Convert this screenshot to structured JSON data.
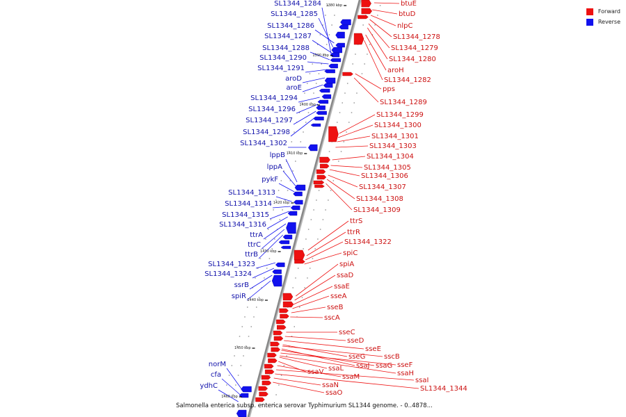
{
  "title": "Salmonella enterica subsp. enterica serovar Typhimurium SL1344 genome. - 0..4878...",
  "legend": [
    {
      "label": "Forward",
      "color": "#ee1111"
    },
    {
      "label": "Reverse",
      "color": "#1111ee"
    }
  ],
  "colors": {
    "forward": "#ee1111",
    "reverse": "#1111ee",
    "backbone": "#888888"
  },
  "ticks": [
    "1380 kbp",
    "1390 kbp",
    "1400 kbp",
    "1410 kbp",
    "1420 kbp",
    "1430 kbp",
    "1440 kbp",
    "1450 kbp",
    "1460 kbp"
  ],
  "reverse_genes": [
    "SL1344_1284",
    "SL1344_1285",
    "SL1344_1286",
    "SL1344_1287",
    "SL1344_1288",
    "SL1344_1290",
    "SL1344_1291",
    "aroD",
    "aroE",
    "SL1344_1294",
    "SL1344_1296",
    "SL1344_1297",
    "SL1344_1298",
    "SL1344_1302",
    "lppB",
    "lppA",
    "pykF",
    "SL1344_1313",
    "SL1344_1314",
    "SL1344_1315",
    "SL1344_1316",
    "ttrA",
    "ttrC",
    "ttrB",
    "SL1344_1323",
    "SL1344_1324",
    "ssrB",
    "spiR",
    "norM",
    "cfa",
    "ydhC"
  ],
  "forward_genes": [
    "btuE",
    "btuD",
    "nlpC",
    "SL1344_1278",
    "SL1344_1279",
    "SL1344_1280",
    "aroH",
    "SL1344_1282",
    "pps",
    "SL1344_1289",
    "SL1344_1299",
    "SL1344_1300",
    "SL1344_1301",
    "SL1344_1303",
    "SL1344_1304",
    "SL1344_1305",
    "SL1344_1306",
    "SL1344_1307",
    "SL1344_1308",
    "SL1344_1309",
    "ttrS",
    "ttrR",
    "SL1344_1322",
    "spiC",
    "spiA",
    "ssaD",
    "ssaE",
    "sseA",
    "sseB",
    "sscA",
    "sseC",
    "sseD",
    "sseE",
    "sseG",
    "sscB",
    "ssaJ",
    "ssaG",
    "sseF",
    "ssaH",
    "ssaL",
    "ssaV",
    "ssaM",
    "ssaI",
    "SL1344_1344",
    "ssaN",
    "ssaO"
  ]
}
